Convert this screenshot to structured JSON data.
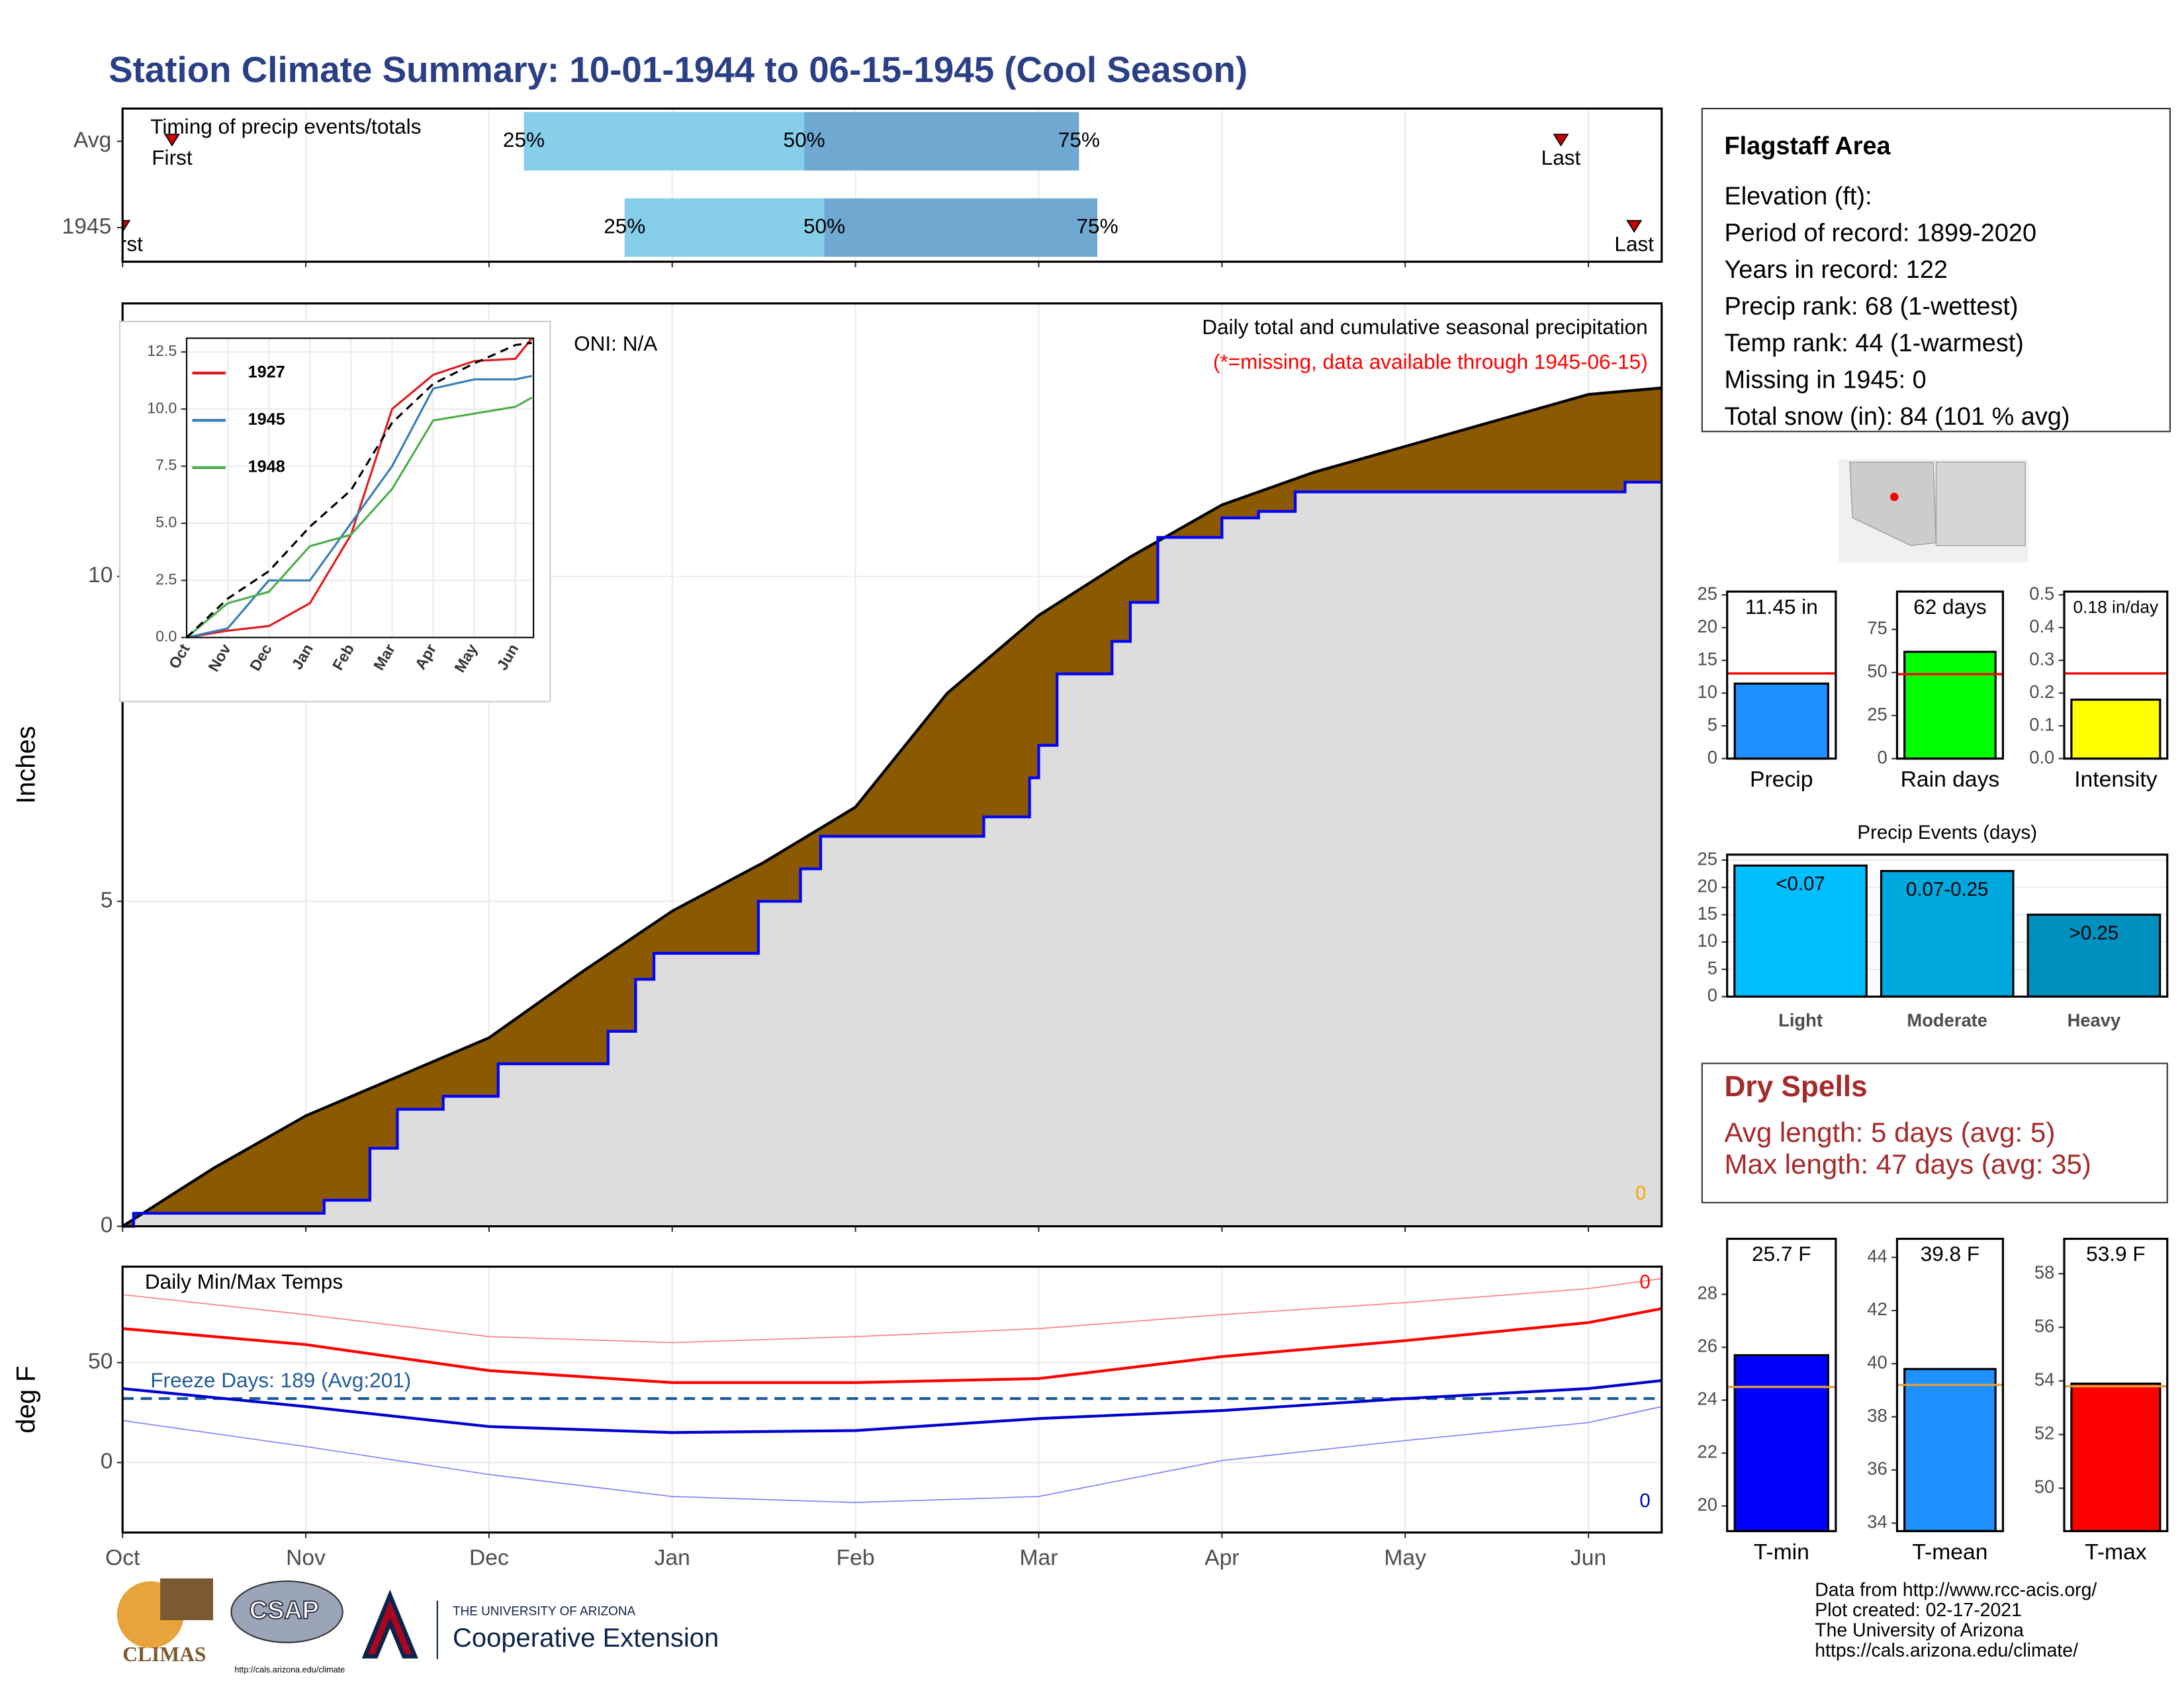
{
  "title": "Station Climate Summary: 10-01-1944 to 06-15-1945 (Cool Season)",
  "chart_data": [
    {
      "type": "timing",
      "title": "Timing of precip events/totals",
      "categories": [
        "Avg",
        "1945"
      ],
      "xlim": [
        0,
        8.4
      ],
      "first": [
        0.27,
        0
      ],
      "p25": [
        2.19,
        2.74
      ],
      "p50": [
        3.72,
        3.83
      ],
      "p75": [
        5.22,
        5.32
      ],
      "last": [
        7.85,
        8.25
      ],
      "first_label": "First",
      "last_label": "Last",
      "percent_labels": [
        "25%",
        "50%",
        "75%"
      ],
      "colors": [
        "#87ceeb",
        "#6fa8d0"
      ],
      "marker_color": "#cc0000"
    },
    {
      "type": "area",
      "title": "Daily total and cumulative seasonal precipitation",
      "subtitle": "(*=missing, data available through 1945-06-15)",
      "annotation": "ONI: N/A",
      "missing_count": "0",
      "ylabel": "Inches",
      "xlim": [
        0,
        8.4
      ],
      "ylim": [
        0,
        14.2
      ],
      "yticks": [
        0,
        5,
        10
      ],
      "grid": true,
      "series": [
        {
          "color": "#000000",
          "fill": "#8b5a00",
          "step": false,
          "x": [
            0,
            0.5,
            1,
            1.5,
            2,
            2.5,
            3,
            3.5,
            4,
            4.5,
            5,
            5.5,
            6,
            6.5,
            7,
            7.5,
            8,
            8.4
          ],
          "values": [
            0,
            0.9,
            1.7,
            2.3,
            2.9,
            3.9,
            4.85,
            5.6,
            6.45,
            8.2,
            9.4,
            10.3,
            11.1,
            11.6,
            12.0,
            12.4,
            12.8,
            12.9
          ]
        },
        {
          "color": "#0000ff",
          "fill": "#dddddd",
          "above_fill": "#008000",
          "step": true,
          "x": [
            0,
            0.06,
            1.1,
            1.35,
            1.5,
            1.75,
            2.05,
            2.65,
            2.8,
            2.9,
            3.47,
            3.7,
            3.81,
            4.7,
            4.95,
            5.0,
            5.1,
            5.4,
            5.5,
            5.65,
            6.0,
            6.2,
            6.4,
            8.2,
            8.4
          ],
          "values": [
            0,
            0.2,
            0.4,
            1.2,
            1.8,
            2.0,
            2.5,
            3.0,
            3.8,
            4.2,
            5.0,
            5.5,
            6.0,
            6.3,
            6.9,
            7.4,
            8.5,
            9.0,
            9.6,
            10.6,
            10.9,
            11.0,
            11.3,
            11.45,
            11.45
          ]
        }
      ]
    },
    {
      "type": "line",
      "xlim": [
        0,
        8.44
      ],
      "ylim": [
        0,
        13.1
      ],
      "xticks": [
        {
          "value": 0,
          "label": "Oct"
        },
        {
          "value": 1,
          "label": "Nov"
        },
        {
          "value": 2,
          "label": "Dec"
        },
        {
          "value": 3,
          "label": "Jan"
        },
        {
          "value": 4,
          "label": "Feb"
        },
        {
          "value": 5,
          "label": "Mar"
        },
        {
          "value": 6,
          "label": "Apr"
        },
        {
          "value": 7,
          "label": "May"
        },
        {
          "value": 8,
          "label": "Jun"
        }
      ],
      "yticks": [
        {
          "value": 0,
          "label": "0.0"
        },
        2.5,
        {
          "value": 5,
          "label": "5.0"
        },
        7.5,
        {
          "value": 10,
          "label": "10.0"
        },
        12.5
      ],
      "x": [
        0,
        1,
        2,
        3,
        4,
        5,
        6,
        7,
        8,
        8.4
      ],
      "series": [
        {
          "name": "1927",
          "color": "#e41a1c",
          "values": [
            0,
            0.3,
            0.5,
            1.5,
            4.5,
            10,
            11.5,
            12.1,
            12.2,
            13.1
          ]
        },
        {
          "name": "1945",
          "color": "#377eb8",
          "values": [
            0,
            0.4,
            2.5,
            2.5,
            5.0,
            7.5,
            10.9,
            11.3,
            11.3,
            11.45
          ]
        },
        {
          "name": "1948",
          "color": "#4daf4a",
          "values": [
            0,
            1.5,
            2.0,
            4.0,
            4.5,
            6.5,
            9.5,
            9.8,
            10.1,
            10.5
          ]
        },
        {
          "color": "#000000",
          "dash": true,
          "values": [
            0,
            1.7,
            2.9,
            4.85,
            6.45,
            9.4,
            11.1,
            12.0,
            12.8,
            12.9
          ]
        }
      ]
    },
    {
      "type": "line",
      "title": "Daily Min/Max Temps",
      "ylabel": "deg F",
      "annotation": "Freeze Days: 189 (Avg:201)",
      "freeze_line": 32,
      "freeze_color": "#1f5c99",
      "top_count": "0",
      "bottom_count": "0",
      "xlim": [
        0,
        8.4
      ],
      "ylim": [
        -35,
        98
      ],
      "yticks": [
        0,
        50
      ],
      "grid": true,
      "xticks": [
        {
          "value": 0,
          "label": "Oct"
        },
        {
          "value": 1,
          "label": "Nov"
        },
        {
          "value": 2,
          "label": "Dec"
        },
        {
          "value": 3,
          "label": "Jan"
        },
        {
          "value": 4,
          "label": "Feb"
        },
        {
          "value": 5,
          "label": "Mar"
        },
        {
          "value": 6,
          "label": "Apr"
        },
        {
          "value": 7,
          "label": "May"
        },
        {
          "value": 8,
          "label": "Jun"
        }
      ],
      "x": [
        0,
        1,
        2,
        3,
        4,
        5,
        6,
        7,
        8,
        8.4
      ],
      "series": [
        {
          "color": "#ff8080",
          "style": "thin",
          "values": [
            84,
            74,
            63,
            60,
            63,
            67,
            74,
            80,
            87,
            92
          ]
        },
        {
          "color": "#8080ff",
          "style": "thin",
          "values": [
            21,
            8,
            -6,
            -17,
            -20,
            -17,
            1,
            11,
            20,
            28
          ]
        },
        {
          "color": "#ff0000",
          "style": "thick",
          "values": [
            67,
            59,
            46,
            40,
            40,
            42,
            53,
            61,
            70,
            77
          ]
        },
        {
          "color": "#0000cc",
          "style": "thick",
          "values": [
            37,
            28,
            18,
            15,
            16,
            22,
            26,
            32,
            37,
            41
          ]
        }
      ]
    },
    {
      "type": "bar",
      "categories": [
        "Precip"
      ],
      "values": [
        11.45
      ],
      "value_labels": [
        "11.45 in"
      ],
      "average": 13,
      "average_color": "#ff0000",
      "color": "#1e90ff",
      "ylim": [
        0,
        25.5
      ],
      "yticks": [
        0,
        5,
        10,
        15,
        20,
        25
      ]
    },
    {
      "type": "bar",
      "categories": [
        "Rain days"
      ],
      "values": [
        62
      ],
      "value_labels": [
        "62 days"
      ],
      "average": 49,
      "average_color": "#ff0000",
      "color": "#00ff00",
      "ylim": [
        0,
        97
      ],
      "yticks": [
        0,
        25,
        50,
        75
      ]
    },
    {
      "type": "bar",
      "categories": [
        "Intensity"
      ],
      "values": [
        0.18
      ],
      "value_labels": [
        "0.18 in/day"
      ],
      "average": 0.26,
      "average_color": "#ff0000",
      "color": "#ffff00",
      "ylim": [
        0,
        0.51
      ],
      "yticks": [
        {
          "value": 0,
          "label": "0.0"
        },
        0.1,
        0.2,
        0.3,
        0.4,
        0.5
      ]
    },
    {
      "type": "bar",
      "title": "Precip Events (days)",
      "categories": [
        "Light",
        "Moderate",
        "Heavy"
      ],
      "values": [
        24,
        23,
        15
      ],
      "ranges": [
        "<0.07",
        "0.07-0.25",
        ">0.25"
      ],
      "colors": [
        "#00bfff",
        "#00a8e0",
        "#0090c0"
      ],
      "ylim": [
        0,
        26
      ],
      "yticks": [
        0,
        5,
        10,
        15,
        20,
        25
      ],
      "grid": true
    },
    {
      "type": "bar",
      "categories": [
        "T-min"
      ],
      "values": [
        25.7
      ],
      "value_labels": [
        "25.7 F"
      ],
      "average": 24.5,
      "average_color": "#e0a040",
      "color": "#0000ff",
      "ylim": [
        19.05,
        30.1
      ],
      "yticks": [
        20,
        22,
        24,
        26,
        28
      ]
    },
    {
      "type": "bar",
      "categories": [
        "T-mean"
      ],
      "values": [
        39.8
      ],
      "value_labels": [
        "39.8 F"
      ],
      "average": 39.2,
      "average_color": "#e0a040",
      "color": "#1e90ff",
      "ylim": [
        33.7,
        44.7
      ],
      "yticks": [
        34,
        36,
        38,
        40,
        42,
        44
      ]
    },
    {
      "type": "bar",
      "categories": [
        "T-max"
      ],
      "values": [
        53.9
      ],
      "value_labels": [
        "53.9 F"
      ],
      "average": 53.8,
      "average_color": "#e0a040",
      "color": "#ff0000",
      "ylim": [
        48.4,
        59.3
      ],
      "yticks": [
        50,
        52,
        54,
        56,
        58
      ]
    }
  ],
  "info": {
    "title": "Flagstaff Area",
    "lines": [
      "Elevation (ft):",
      "Period of record: 1899-2020",
      "Years in record: 122",
      "Precip rank: 68 (1-wettest)",
      "Temp rank: 44 (1-warmest)",
      "Missing in 1945: 0",
      "Total snow (in): 84 (101 % avg)"
    ]
  },
  "dry_spells": {
    "title": "Dry Spells",
    "lines": [
      "Avg length: 5 days (avg: 5)",
      "Max length: 47 days (avg: 35)"
    ]
  },
  "footer": [
    "Data from http://www.rcc-acis.org/",
    "Plot created: 02-17-2021",
    "The University of Arizona",
    "https://cals.arizona.edu/climate/"
  ],
  "logos": {
    "climas": "CLIMAS",
    "csap": "CSAP",
    "csap_url": "http://cals.arizona.edu/climate",
    "university": "THE UNIVERSITY OF ARIZONA",
    "extension": "Cooperative Extension"
  }
}
